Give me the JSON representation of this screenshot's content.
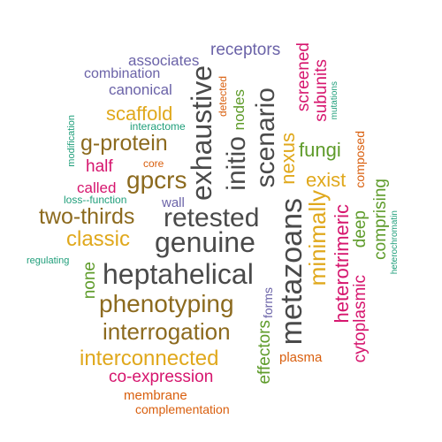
{
  "palette": {
    "gray": "#4a4a4a",
    "brown": "#8c6a1e",
    "orange": "#e0a81c",
    "magenta": "#d6166e",
    "green": "#5e9b2a",
    "purple": "#6b63a8",
    "teal": "#1f9e7a",
    "rust": "#d95f0e"
  },
  "words": [
    {
      "text": "genuine",
      "color": "gray"
    },
    {
      "text": "heptahelical",
      "color": "gray"
    },
    {
      "text": "retested",
      "color": "gray"
    },
    {
      "text": "exhaustive",
      "color": "gray"
    },
    {
      "text": "scenario",
      "color": "gray"
    },
    {
      "text": "initio",
      "color": "gray"
    },
    {
      "text": "metazoans",
      "color": "gray"
    },
    {
      "text": "gpcrs",
      "color": "brown"
    },
    {
      "text": "phenotyping",
      "color": "brown"
    },
    {
      "text": "interrogation",
      "color": "brown"
    },
    {
      "text": "two-thirds",
      "color": "brown"
    },
    {
      "text": "g-protein",
      "color": "brown"
    },
    {
      "text": "minimally",
      "color": "orange"
    },
    {
      "text": "interconnected",
      "color": "orange"
    },
    {
      "text": "classic",
      "color": "orange"
    },
    {
      "text": "scaffold",
      "color": "orange"
    },
    {
      "text": "exist",
      "color": "orange"
    },
    {
      "text": "nexus",
      "color": "orange"
    },
    {
      "text": "heterotrimeric",
      "color": "magenta"
    },
    {
      "text": "co-expression",
      "color": "magenta"
    },
    {
      "text": "cytoplasmic",
      "color": "magenta"
    },
    {
      "text": "screened",
      "color": "magenta"
    },
    {
      "text": "subunits",
      "color": "magenta"
    },
    {
      "text": "half",
      "color": "magenta"
    },
    {
      "text": "called",
      "color": "magenta"
    },
    {
      "text": "fungi",
      "color": "green"
    },
    {
      "text": "comprising",
      "color": "green"
    },
    {
      "text": "effectors",
      "color": "green"
    },
    {
      "text": "deep",
      "color": "green"
    },
    {
      "text": "none",
      "color": "green"
    },
    {
      "text": "nodes",
      "color": "green"
    },
    {
      "text": "receptors",
      "color": "purple"
    },
    {
      "text": "canonical",
      "color": "purple"
    },
    {
      "text": "associates",
      "color": "purple"
    },
    {
      "text": "combination",
      "color": "purple"
    },
    {
      "text": "wall",
      "color": "purple"
    },
    {
      "text": "forms",
      "color": "purple"
    },
    {
      "text": "interactome",
      "color": "teal"
    },
    {
      "text": "modification",
      "color": "teal"
    },
    {
      "text": "loss--function",
      "color": "teal"
    },
    {
      "text": "regulating",
      "color": "teal"
    },
    {
      "text": "mutations",
      "color": "teal"
    },
    {
      "text": "heterochromatin",
      "color": "teal"
    },
    {
      "text": "detected",
      "color": "rust"
    },
    {
      "text": "core",
      "color": "rust"
    },
    {
      "text": "composed",
      "color": "rust"
    },
    {
      "text": "plasma",
      "color": "rust"
    },
    {
      "text": "membrane",
      "color": "rust"
    },
    {
      "text": "complementation",
      "color": "rust"
    }
  ]
}
